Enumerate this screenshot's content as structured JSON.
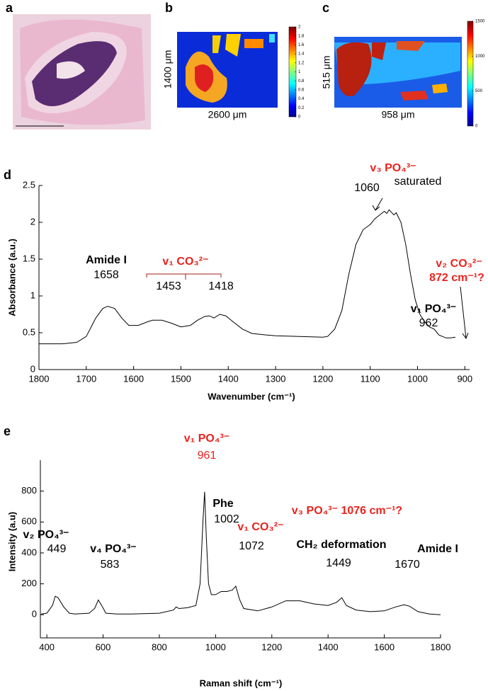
{
  "panel_labels": [
    "a",
    "b",
    "c",
    "d",
    "e"
  ],
  "images": [
    {
      "label": "a"
    },
    {
      "label": "b",
      "ylabel": "1400 μm",
      "xlabel": "2600 μm",
      "clim": [
        0,
        2
      ],
      "cticks": [
        0,
        0.2,
        0.4,
        0.6,
        0.8,
        1,
        1.2,
        1.4,
        1.6,
        1.8,
        2
      ]
    },
    {
      "label": "c",
      "ylabel": "515 μm",
      "xlabel": "958 μm",
      "clim": [
        0,
        1500
      ],
      "cticks": [
        0,
        500,
        1000,
        1500
      ]
    }
  ],
  "chart_data": [
    {
      "type": "line",
      "label": "d",
      "color": "#000000",
      "xlabel": "Wavenumber (cm⁻¹)",
      "ylabel": "Absorbance (a.u.)",
      "xlim": [
        1800,
        890
      ],
      "xticks": [
        1800,
        1700,
        1600,
        1500,
        1400,
        1300,
        1200,
        1100,
        1000,
        900
      ],
      "ylim": [
        0,
        2.5
      ],
      "yticks": [
        0,
        0.5,
        1,
        1.5,
        2,
        2.5
      ],
      "x": [
        1800,
        1750,
        1720,
        1700,
        1680,
        1665,
        1655,
        1640,
        1625,
        1610,
        1590,
        1570,
        1560,
        1540,
        1520,
        1500,
        1480,
        1465,
        1450,
        1440,
        1430,
        1418,
        1405,
        1390,
        1370,
        1350,
        1320,
        1300,
        1250,
        1200,
        1190,
        1175,
        1160,
        1145,
        1130,
        1115,
        1100,
        1090,
        1080,
        1070,
        1065,
        1060,
        1050,
        1045,
        1035,
        1025,
        1015,
        1005,
        995,
        985,
        975,
        965,
        955,
        940,
        930,
        920
      ],
      "values": [
        0.35,
        0.35,
        0.37,
        0.45,
        0.7,
        0.83,
        0.86,
        0.83,
        0.7,
        0.6,
        0.6,
        0.65,
        0.67,
        0.67,
        0.63,
        0.58,
        0.6,
        0.67,
        0.72,
        0.73,
        0.7,
        0.75,
        0.73,
        0.65,
        0.55,
        0.49,
        0.47,
        0.46,
        0.45,
        0.44,
        0.45,
        0.55,
        0.8,
        1.3,
        1.7,
        1.9,
        1.97,
        2.05,
        2.1,
        2.15,
        2.12,
        2.17,
        2.1,
        2.13,
        2.0,
        1.7,
        1.3,
        0.95,
        0.75,
        0.65,
        0.58,
        0.55,
        0.47,
        0.43,
        0.43,
        0.44
      ],
      "annotations": [
        {
          "text": "v₃ PO₄³⁻",
          "color": "#e8231e"
        },
        {
          "text": "saturated",
          "color": "#000000"
        },
        {
          "text": "1060",
          "color": "#000000"
        },
        {
          "text": "Amide I",
          "color": "#000000"
        },
        {
          "text": "1658",
          "color": "#000000"
        },
        {
          "text": "v₁ CO₃²⁻",
          "color": "#e8231e"
        },
        {
          "text": "1453",
          "color": "#000000"
        },
        {
          "text": "1418",
          "color": "#000000"
        },
        {
          "text": "v₁ PO₄³⁻",
          "color": "#000000"
        },
        {
          "text": "962",
          "color": "#000000"
        },
        {
          "text": "v₂ CO₃²⁻",
          "color": "#e8231e"
        },
        {
          "text": "872 cm⁻¹?",
          "color": "#e8231e"
        }
      ]
    },
    {
      "type": "line",
      "label": "e",
      "color": "#000000",
      "xlabel": "Raman shift (cm⁻¹)",
      "ylabel": "Intensity (a.u)",
      "xlim": [
        377,
        1800
      ],
      "xticks": [
        400,
        600,
        800,
        1000,
        1200,
        1400,
        1600,
        1800
      ],
      "ylim": [
        -150,
        1000
      ],
      "yticks": [
        0,
        200,
        400,
        600,
        800
      ],
      "x": [
        380,
        400,
        420,
        430,
        440,
        460,
        480,
        500,
        550,
        570,
        583,
        595,
        610,
        650,
        700,
        800,
        850,
        860,
        870,
        900,
        930,
        945,
        955,
        961,
        967,
        975,
        985,
        1000,
        1020,
        1040,
        1060,
        1072,
        1085,
        1100,
        1150,
        1200,
        1250,
        1300,
        1350,
        1400,
        1430,
        1449,
        1465,
        1500,
        1550,
        1600,
        1640,
        1670,
        1690,
        1720,
        1760,
        1800
      ],
      "values": [
        5,
        10,
        60,
        120,
        110,
        50,
        10,
        5,
        10,
        40,
        95,
        60,
        10,
        5,
        5,
        10,
        30,
        50,
        40,
        45,
        60,
        200,
        600,
        795,
        500,
        200,
        130,
        130,
        150,
        150,
        160,
        185,
        100,
        40,
        25,
        50,
        90,
        90,
        70,
        60,
        80,
        110,
        60,
        30,
        20,
        25,
        50,
        65,
        55,
        20,
        5,
        0
      ],
      "annotations": [
        {
          "text": "v₁ PO₄³⁻",
          "color": "#e8231e"
        },
        {
          "text": "961",
          "color": "#e8231e"
        },
        {
          "text": "Phe",
          "color": "#000000"
        },
        {
          "text": "1002",
          "color": "#000000"
        },
        {
          "text": "v₃ PO₄³⁻ 1076 cm⁻¹?",
          "color": "#e8231e"
        },
        {
          "text": "v₂ PO₄³⁻",
          "color": "#000000"
        },
        {
          "text": "449",
          "color": "#000000"
        },
        {
          "text": "v₄ PO₄³⁻",
          "color": "#000000"
        },
        {
          "text": "583",
          "color": "#000000"
        },
        {
          "text": "v₁ CO₃²⁻",
          "color": "#e8231e"
        },
        {
          "text": "1072",
          "color": "#000000"
        },
        {
          "text": "CH₂ deformation",
          "color": "#000000"
        },
        {
          "text": "1449",
          "color": "#000000"
        },
        {
          "text": "Amide I",
          "color": "#000000"
        },
        {
          "text": "1670",
          "color": "#000000"
        }
      ]
    }
  ]
}
